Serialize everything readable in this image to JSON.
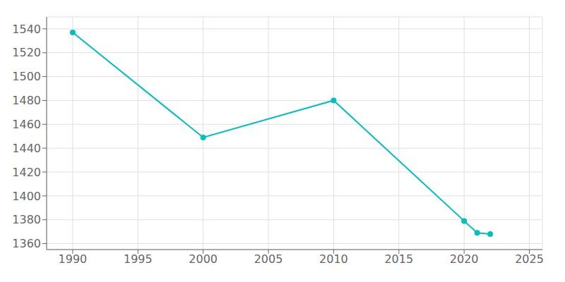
{
  "chart_data": {
    "type": "line",
    "x": [
      1990,
      2000,
      2010,
      2020,
      2021,
      2022
    ],
    "values": [
      1537,
      1449,
      1480,
      1379,
      1369,
      1368
    ],
    "color": "#00BFBF",
    "marker": "circle",
    "xlim": [
      1988,
      2026
    ],
    "ylim": [
      1355,
      1550
    ],
    "xticks": [
      1990,
      1995,
      2000,
      2005,
      2010,
      2015,
      2020,
      2025
    ],
    "yticks": [
      1360,
      1380,
      1400,
      1420,
      1440,
      1460,
      1480,
      1500,
      1520,
      1540
    ],
    "grid": true
  }
}
